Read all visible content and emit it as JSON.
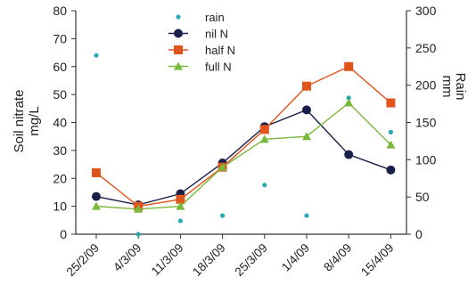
{
  "chart_data": {
    "type": "line",
    "title": "",
    "categories": [
      "25/2/09",
      "4/3/09",
      "11/3/09",
      "18/3/09",
      "25/3/09",
      "1/4/09",
      "8/4/09",
      "15/4/09"
    ],
    "ylabel_left": [
      "Soil nitrate",
      "mg/L"
    ],
    "ylabel_right": [
      "Rain",
      "mm"
    ],
    "ylim_left": [
      0,
      80
    ],
    "yticks_left": [
      0,
      10,
      20,
      30,
      40,
      50,
      60,
      70,
      80
    ],
    "ylim_right": [
      0,
      300
    ],
    "yticks_right": [
      0,
      50,
      100,
      150,
      200,
      250,
      300
    ],
    "grid": false,
    "legend_position": "top-center",
    "series": [
      {
        "name": "rain",
        "axis": "right",
        "style": "points",
        "marker": "dot",
        "color": "#2aa9b5",
        "values": [
          240,
          0,
          18,
          25,
          66,
          25,
          183,
          137
        ]
      },
      {
        "name": "nil N",
        "axis": "left",
        "style": "line",
        "marker": "circle",
        "color": "#1a1f4a",
        "values": [
          13.5,
          10.5,
          14.5,
          25.5,
          38.5,
          44.5,
          28.5,
          23
        ]
      },
      {
        "name": "half N",
        "axis": "left",
        "style": "line",
        "marker": "square",
        "color": "#e0551c",
        "values": [
          22,
          10,
          12.5,
          24,
          37.5,
          53,
          60,
          47
        ]
      },
      {
        "name": "full N",
        "axis": "left",
        "style": "line",
        "marker": "triangle",
        "color": "#7ab83c",
        "values": [
          10,
          9,
          10,
          24,
          34,
          35,
          47,
          32
        ]
      }
    ]
  }
}
